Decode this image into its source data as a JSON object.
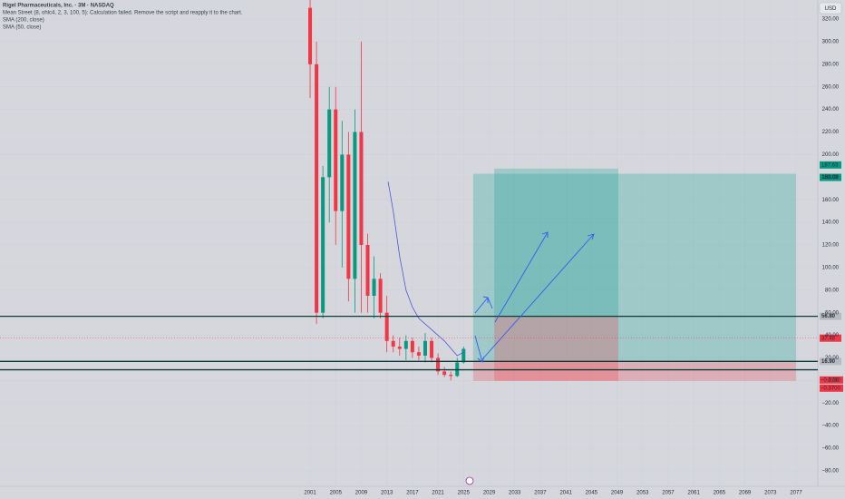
{
  "chart_data": {
    "type": "candlestick",
    "title": "Rigel Pharmaceuticals, Inc. · 3M · NASDAQ",
    "indicators": [
      "Mean Street (8, ohlc4, 2, 3, 100, 5): Calculation failed. Remove the script and reapply it to the chart.",
      "SMA (200, close)"
    ],
    "currency": "USD",
    "x": [
      2001,
      2002,
      2003,
      2004,
      2005,
      2006,
      2007,
      2008,
      2009,
      2010,
      2011,
      2012,
      2013,
      2014,
      2015,
      2016,
      2017,
      2018,
      2019,
      2020,
      2021,
      2022,
      2023,
      2024,
      2025
    ],
    "open": [
      330,
      280,
      60,
      180,
      240,
      150,
      200,
      90,
      220,
      120,
      75,
      90,
      60,
      35,
      30,
      28,
      35,
      25,
      22,
      35,
      20,
      8,
      5,
      4,
      16
    ],
    "high": [
      345,
      300,
      190,
      260,
      260,
      230,
      220,
      240,
      300,
      130,
      110,
      95,
      75,
      40,
      38,
      40,
      38,
      30,
      42,
      38,
      24,
      12,
      8,
      20,
      30
    ],
    "low": [
      250,
      50,
      55,
      140,
      120,
      100,
      70,
      60,
      60,
      60,
      55,
      55,
      25,
      25,
      22,
      18,
      20,
      18,
      16,
      16,
      5,
      3,
      0,
      3,
      15
    ],
    "close": [
      280,
      60,
      180,
      240,
      150,
      200,
      90,
      220,
      120,
      75,
      90,
      60,
      35,
      30,
      28,
      35,
      25,
      22,
      35,
      20,
      8,
      5,
      4,
      16,
      28
    ],
    "up_color": "#089981",
    "down_color": "#f23645",
    "series": [
      {
        "name": "SMA (50, close)",
        "color": "#4f55d8",
        "x": [
          2013.2,
          2014,
          2015,
          2016,
          2017,
          2018,
          2020,
          2022,
          2024,
          2025
        ],
        "values": [
          176,
          150,
          110,
          80,
          65,
          55,
          45,
          35,
          22,
          25
        ]
      }
    ],
    "xlim": [
      1952.5,
      2080.4
    ],
    "ylim": [
      -93.7,
      336.9
    ],
    "xticks": [
      2001,
      2005,
      2009,
      2013,
      2017,
      2021,
      2025,
      2029,
      2033,
      2037,
      2041,
      2045,
      2049,
      2053,
      2057,
      2061,
      2065,
      2069,
      2073,
      2077
    ],
    "yticks": [
      {
        "value": 320,
        "label": "320.00"
      },
      {
        "value": 300,
        "label": "300.00"
      },
      {
        "value": 280,
        "label": "280.00"
      },
      {
        "value": 260,
        "label": "260.00"
      },
      {
        "value": 240,
        "label": "240.00"
      },
      {
        "value": 220,
        "label": "220.00"
      },
      {
        "value": 200,
        "label": "200.00"
      },
      {
        "value": 180,
        "label": "180.00"
      },
      {
        "value": 160,
        "label": "160.00"
      },
      {
        "value": 140,
        "label": "140.00"
      },
      {
        "value": 120,
        "label": "120.00"
      },
      {
        "value": 100,
        "label": "100.00"
      },
      {
        "value": 80,
        "label": "80.00"
      },
      {
        "value": 60,
        "label": "60.00"
      },
      {
        "value": 40,
        "label": "40.00"
      },
      {
        "value": 20,
        "label": "20.00"
      },
      {
        "value": 0,
        "label": "0.00"
      },
      {
        "value": -20,
        "label": "−20.00"
      },
      {
        "value": -40,
        "label": "−40.00"
      },
      {
        "value": -60,
        "label": "−60.00"
      },
      {
        "value": -80,
        "label": "−80.00"
      }
    ],
    "hlines": [
      {
        "value": 56.8,
        "label": "56.80"
      },
      {
        "value": 16.9,
        "label": "16.90"
      },
      9.5
    ],
    "current_price": {
      "value": 37.48,
      "label": "37.48"
    },
    "positions": [
      {
        "x0": 2026.5,
        "x1": 2077,
        "target": {
          "value": 183.03,
          "label": "183.03"
        },
        "entry": 16.9,
        "stop": {
          "value": -0.37,
          "label": "−0.3700"
        }
      },
      {
        "x0": 2029.8,
        "x1": 2049.2,
        "target": {
          "value": 187.63,
          "label": "187.63"
        },
        "entry": 56.8,
        "stop": {
          "value": -0.37,
          "label": "−0.3700"
        }
      }
    ],
    "grid": true
  }
}
